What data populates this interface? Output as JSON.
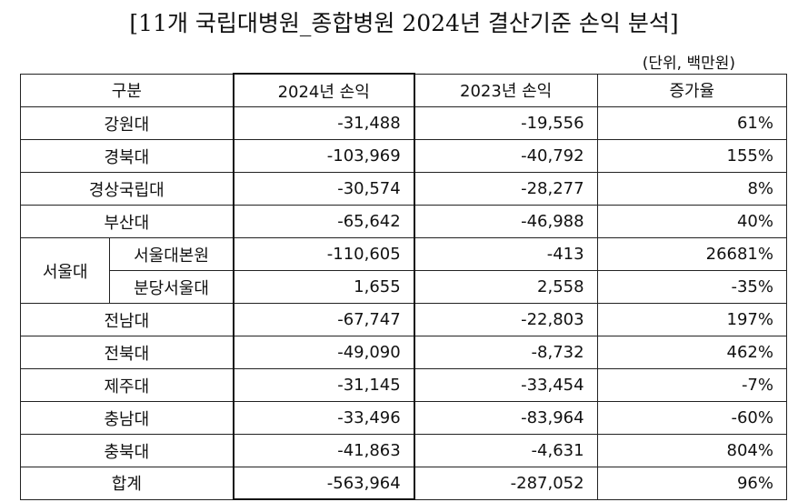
{
  "title": "[11개 국립대병원_종합병원 2024년 결산기준 손익 분석]",
  "unit": "(단위, 백만원)",
  "header": {
    "category": "구분",
    "col2024": "2024년 손익",
    "col2023": "2023년 손익",
    "growth": "증가율"
  },
  "rows": [
    {
      "name": "강원대",
      "y2024": "-31,488",
      "y2023": "-19,556",
      "growth": "61%"
    },
    {
      "name": "경북대",
      "y2024": "-103,969",
      "y2023": "-40,792",
      "growth": "155%"
    },
    {
      "name": "경상국립대",
      "y2024": "-30,574",
      "y2023": "-28,277",
      "growth": "8%"
    },
    {
      "name": "부산대",
      "y2024": "-65,642",
      "y2023": "-46,988",
      "growth": "40%"
    },
    {
      "group": "서울대",
      "name": "서울대본원",
      "y2024": "-110,605",
      "y2023": "-413",
      "growth": "26681%"
    },
    {
      "name": "분당서울대",
      "y2024": "1,655",
      "y2023": "2,558",
      "growth": "-35%"
    },
    {
      "name": "전남대",
      "y2024": "-67,747",
      "y2023": "-22,803",
      "growth": "197%"
    },
    {
      "name": "전북대",
      "y2024": "-49,090",
      "y2023": "-8,732",
      "growth": "462%"
    },
    {
      "name": "제주대",
      "y2024": "-31,145",
      "y2023": "-33,454",
      "growth": "-7%"
    },
    {
      "name": "충남대",
      "y2024": "-33,496",
      "y2023": "-83,964",
      "growth": "-60%"
    },
    {
      "name": "충북대",
      "y2024": "-41,863",
      "y2023": "-4,631",
      "growth": "804%"
    },
    {
      "name": "합계",
      "y2024": "-563,964",
      "y2023": "-287,052",
      "growth": "96%"
    }
  ]
}
